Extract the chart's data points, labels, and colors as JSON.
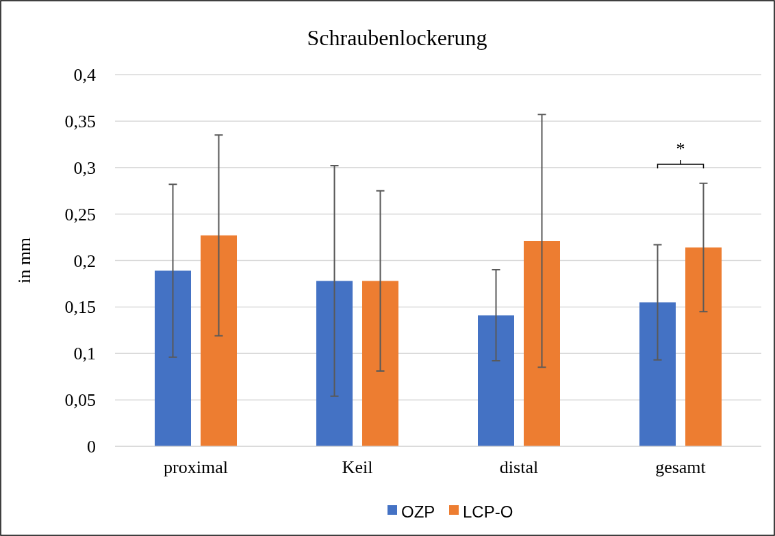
{
  "chart_data": {
    "type": "bar",
    "title": "Schraubenlockerung",
    "ylabel": "in mm",
    "categories": [
      "proximal",
      "Keil",
      "distal",
      "gesamt"
    ],
    "series": [
      {
        "name": "OZP",
        "color": "#4472c4",
        "values": [
          0.189,
          0.178,
          0.141,
          0.155
        ],
        "errors": [
          [
            0.096,
            0.282
          ],
          [
            0.054,
            0.302
          ],
          [
            0.092,
            0.19
          ],
          [
            0.093,
            0.217
          ]
        ]
      },
      {
        "name": "LCP-O",
        "color": "#ed7d31",
        "values": [
          0.227,
          0.178,
          0.221,
          0.214
        ],
        "errors": [
          [
            0.119,
            0.335
          ],
          [
            0.081,
            0.275
          ],
          [
            0.085,
            0.357
          ],
          [
            0.145,
            0.283
          ]
        ]
      }
    ],
    "ylim": [
      0,
      0.4
    ],
    "yticks": [
      {
        "value": 0,
        "label": "0"
      },
      {
        "value": 0.05,
        "label": "0,05"
      },
      {
        "value": 0.1,
        "label": "0,1"
      },
      {
        "value": 0.15,
        "label": "0,15"
      },
      {
        "value": 0.2,
        "label": "0,2"
      },
      {
        "value": 0.25,
        "label": "0,25"
      },
      {
        "value": 0.3,
        "label": "0,3"
      },
      {
        "value": 0.35,
        "label": "0,35"
      },
      {
        "value": 0.4,
        "label": "0,4"
      }
    ],
    "grid": "y",
    "legend": "bottom",
    "annotations": [
      "*"
    ]
  }
}
